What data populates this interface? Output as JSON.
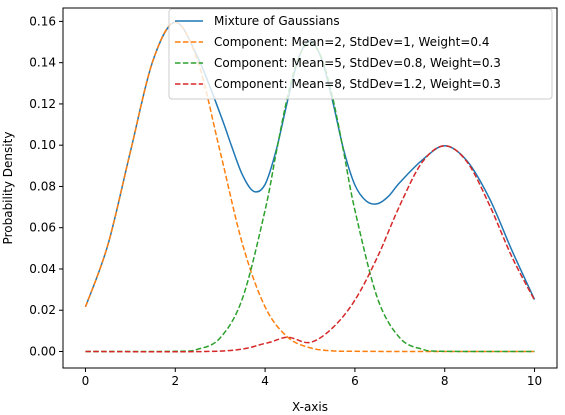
{
  "chart_data": {
    "type": "line",
    "xlabel": "X-axis",
    "ylabel": "Probability Density",
    "xlim": [
      -0.5,
      10.5
    ],
    "ylim": [
      -0.008,
      0.1665
    ],
    "xticks": [
      0,
      2,
      4,
      6,
      8,
      10
    ],
    "xtick_labels": [
      "0",
      "2",
      "4",
      "6",
      "8",
      "10"
    ],
    "yticks": [
      0.0,
      0.02,
      0.04,
      0.06,
      0.08,
      0.1,
      0.12,
      0.14,
      0.16
    ],
    "ytick_labels": [
      "0.00",
      "0.02",
      "0.04",
      "0.06",
      "0.08",
      "0.10",
      "0.12",
      "0.14",
      "0.16"
    ],
    "grid": false,
    "legend_position": "top-right",
    "series": [
      {
        "name": "Mixture of Gaussians",
        "color": "#1f77b4",
        "style": "solid",
        "x": [
          0,
          0.5,
          1,
          1.5,
          2,
          2.5,
          3,
          3.25,
          3.5,
          3.75,
          4,
          4.25,
          4.5,
          4.75,
          5,
          5.25,
          5.5,
          5.75,
          6,
          6.25,
          6.5,
          6.75,
          7,
          7.5,
          8,
          8.5,
          9,
          9.5,
          10
        ],
        "values": [
          0.0216,
          0.0517,
          0.0968,
          0.1408,
          0.1596,
          0.1426,
          0.1152,
          0.0998,
          0.0854,
          0.0776,
          0.081,
          0.0978,
          0.1215,
          0.1425,
          0.1505,
          0.1422,
          0.1217,
          0.0977,
          0.0807,
          0.073,
          0.0716,
          0.0753,
          0.0819,
          0.0928,
          0.0997,
          0.0923,
          0.074,
          0.0488,
          0.0252
        ]
      },
      {
        "name": "Component: Mean=2, StdDev=1, Weight=0.4",
        "color": "#ff7f0e",
        "style": "dashed",
        "x": [
          0,
          0.5,
          1,
          1.5,
          2,
          2.5,
          3,
          3.5,
          4,
          4.5,
          5,
          5.5,
          6,
          7,
          8,
          10
        ],
        "values": [
          0.0216,
          0.0518,
          0.0968,
          0.1408,
          0.1596,
          0.1408,
          0.0968,
          0.0518,
          0.0216,
          0.007,
          0.0018,
          0.0003,
          0.0001,
          0.0,
          0.0,
          0.0
        ]
      },
      {
        "name": "Component: Mean=5, StdDev=0.8, Weight=0.3",
        "color": "#2ca02c",
        "style": "dashed",
        "x": [
          0,
          2,
          2.5,
          3,
          3.5,
          4,
          4.25,
          4.5,
          4.75,
          5,
          5.25,
          5.5,
          5.75,
          6,
          6.5,
          7,
          7.5,
          8,
          10
        ],
        "values": [
          0.0,
          0.0001,
          0.0011,
          0.0066,
          0.026,
          0.0685,
          0.0967,
          0.1235,
          0.1427,
          0.1496,
          0.1427,
          0.1235,
          0.0967,
          0.0685,
          0.026,
          0.0066,
          0.0011,
          0.0001,
          0.0
        ]
      },
      {
        "name": "Component: Mean=8, StdDev=1.2, Weight=0.3",
        "color": "#d62728",
        "style": "dashed",
        "x": [
          0,
          3,
          4,
          4.5,
          5,
          5.5,
          6,
          6.5,
          7,
          7.5,
          8,
          8.5,
          9,
          9.5,
          10
        ],
        "values": [
          0.0,
          0.0002,
          0.0039,
          0.0069,
          0.0044,
          0.0114,
          0.0249,
          0.0457,
          0.0708,
          0.0918,
          0.0997,
          0.0918,
          0.0708,
          0.0457,
          0.0249
        ]
      }
    ]
  }
}
